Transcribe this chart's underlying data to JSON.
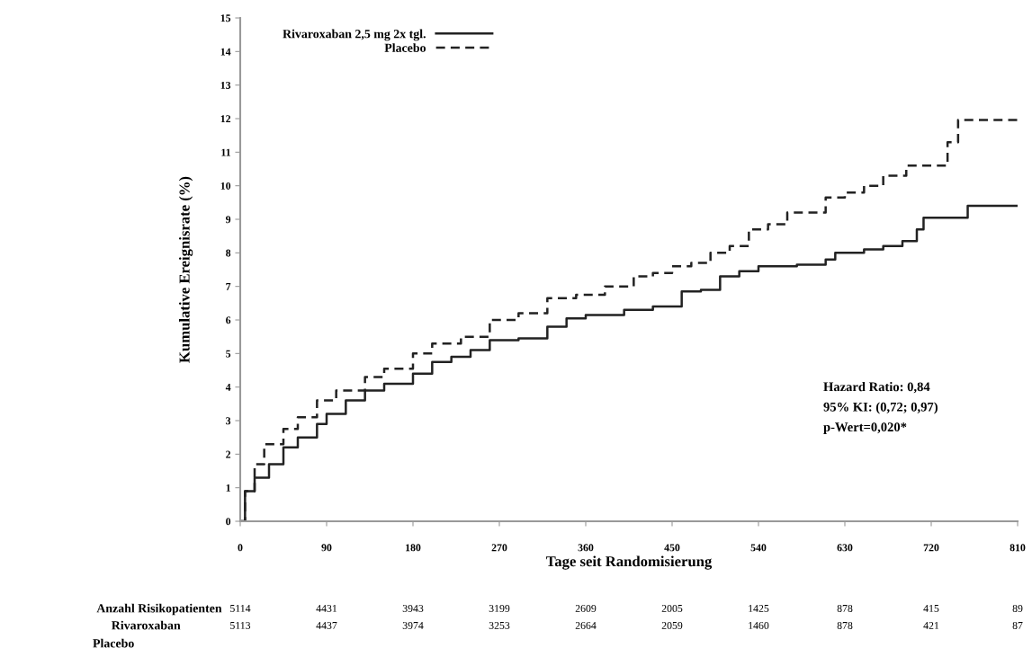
{
  "chart_data": {
    "type": "step",
    "xlabel": "Tage seit Randomisierung",
    "ylabel": "Kumulative Ereignisrate (%)",
    "xlim": [
      0,
      810
    ],
    "xticks": [
      0,
      90,
      180,
      270,
      360,
      450,
      540,
      630,
      720,
      810
    ],
    "ylim": [
      0,
      15
    ],
    "yticks": [
      0,
      1,
      2,
      3,
      4,
      5,
      6,
      7,
      8,
      9,
      10,
      11,
      12,
      13,
      14,
      15
    ],
    "grid": false,
    "legend": "top",
    "marker": "none",
    "series": [
      {
        "name": "Rivaroxaban 2,5 mg 2x tgl.",
        "color": "#222222",
        "line_style": "solid",
        "x": [
          0,
          5,
          15,
          30,
          45,
          60,
          80,
          90,
          110,
          130,
          150,
          180,
          200,
          220,
          240,
          260,
          290,
          320,
          340,
          360,
          400,
          430,
          460,
          480,
          500,
          520,
          540,
          580,
          610,
          620,
          650,
          670,
          690,
          705,
          712,
          758,
          810
        ],
        "values": [
          0,
          0.9,
          1.3,
          1.7,
          2.2,
          2.5,
          2.9,
          3.2,
          3.6,
          3.9,
          4.1,
          4.4,
          4.75,
          4.9,
          5.1,
          5.4,
          5.45,
          5.8,
          6.05,
          6.15,
          6.3,
          6.4,
          6.85,
          6.9,
          7.3,
          7.45,
          7.6,
          7.65,
          7.8,
          8.0,
          8.1,
          8.2,
          8.35,
          8.7,
          9.05,
          9.4,
          9.4
        ]
      },
      {
        "name": "Placebo",
        "color": "#222222",
        "line_style": "dashed",
        "x": [
          0,
          5,
          15,
          25,
          45,
          60,
          80,
          100,
          130,
          150,
          180,
          200,
          230,
          260,
          290,
          320,
          350,
          380,
          410,
          430,
          450,
          470,
          490,
          510,
          530,
          550,
          570,
          590,
          610,
          630,
          650,
          670,
          694,
          737,
          748,
          810
        ],
        "values": [
          0,
          0.9,
          1.7,
          2.3,
          2.75,
          3.1,
          3.6,
          3.9,
          4.3,
          4.55,
          5.0,
          5.3,
          5.5,
          6.0,
          6.2,
          6.65,
          6.75,
          7.0,
          7.3,
          7.4,
          7.6,
          7.7,
          8.0,
          8.2,
          8.7,
          8.85,
          9.2,
          9.2,
          9.65,
          9.8,
          10.0,
          10.3,
          10.6,
          11.3,
          11.96,
          11.96
        ]
      }
    ],
    "annotations": [
      "Hazard Ratio: 0,84",
      "95% KI: (0,72; 0,97)",
      "p-Wert=0,020*",
      "Anzahl Risikopatienten",
      "Rivaroxaban",
      "Placebo",
      "5114",
      "4431",
      "3943",
      "3199",
      "2609",
      "2005",
      "1425",
      "878",
      "415",
      "89",
      "5113",
      "4437",
      "3974",
      "3253",
      "2664",
      "2059",
      "1460",
      "878",
      "421",
      "87"
    ]
  }
}
